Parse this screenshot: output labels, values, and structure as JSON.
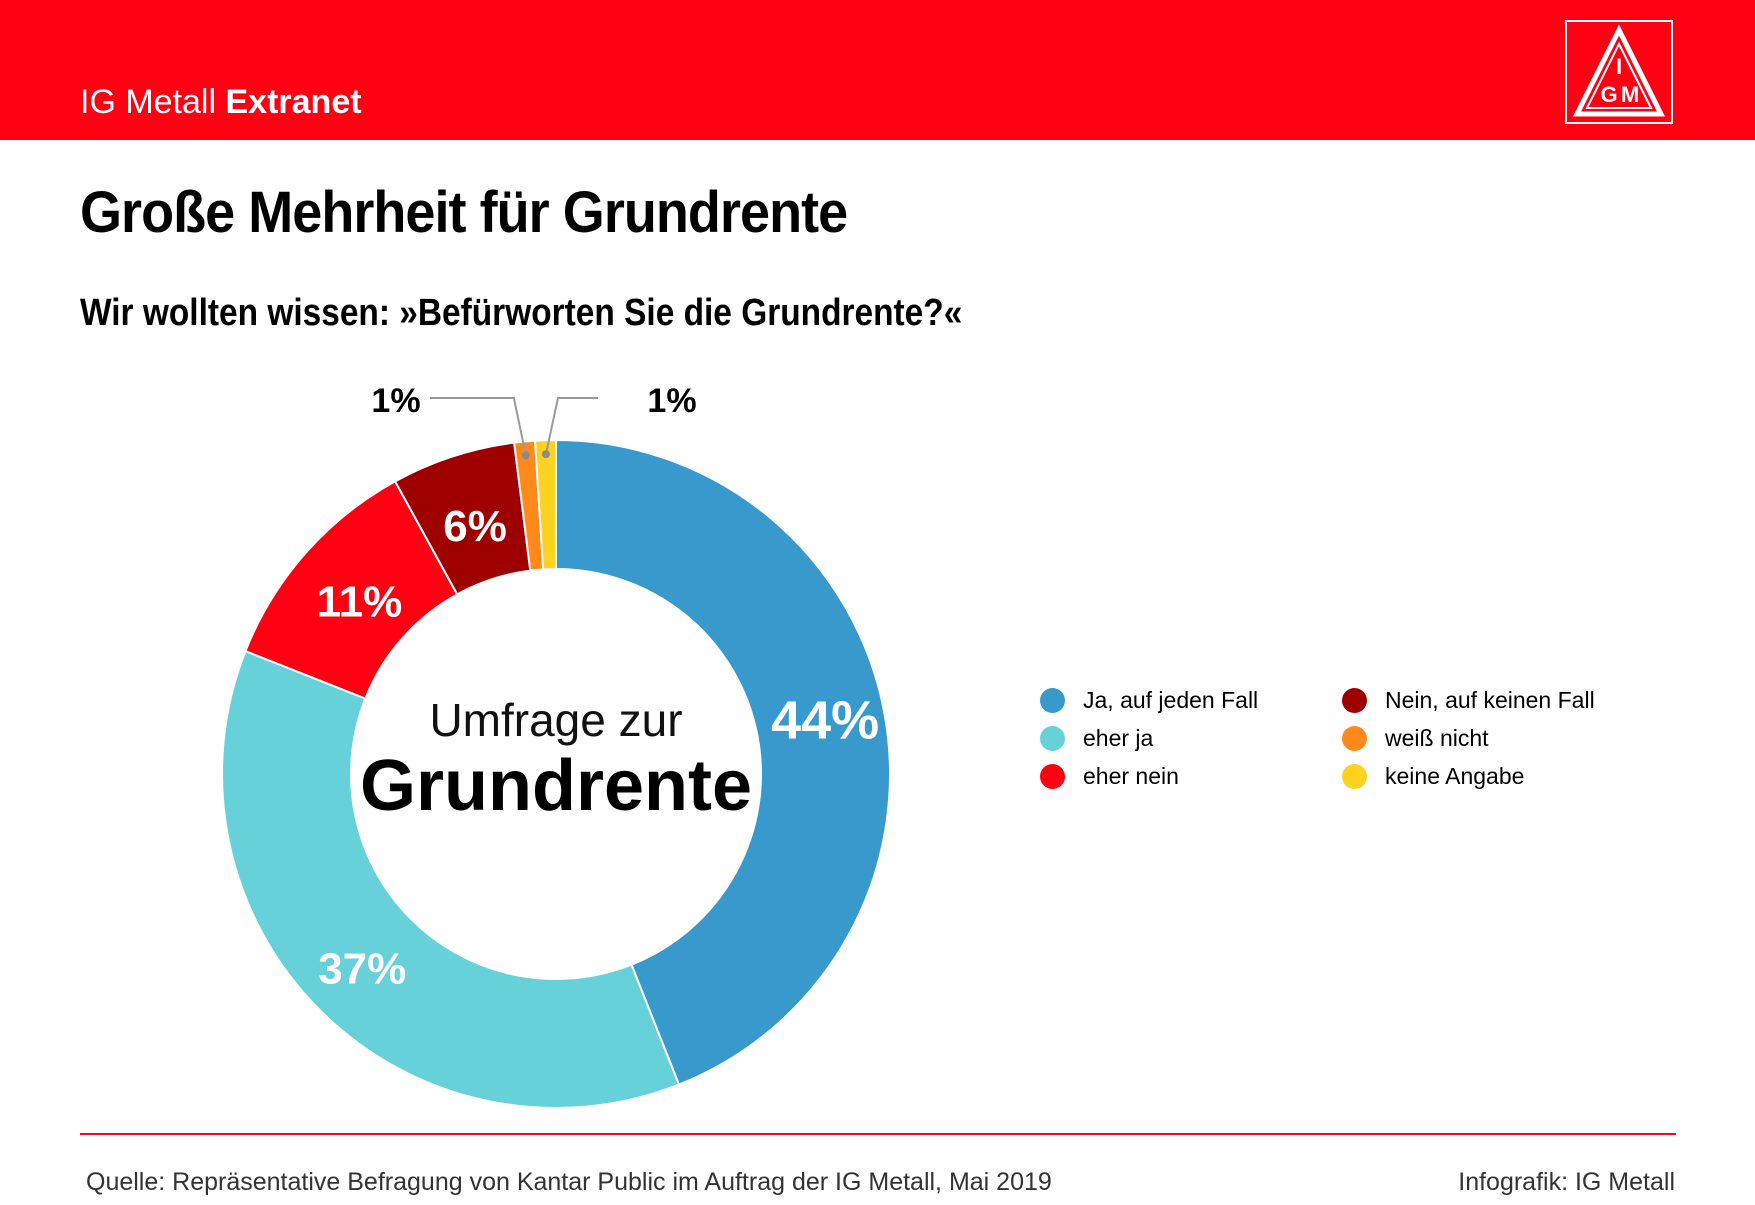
{
  "header": {
    "brand_regular": "IG Metall",
    "brand_bold": "Extranet",
    "logo_text": "IGM",
    "bar_color": "#ff0013"
  },
  "title": "Große Mehrheit für Grundrente",
  "subtitle": "Wir wollten wissen:  »Befürworten Sie die Grundrente?«",
  "chart_data": {
    "type": "pie",
    "variant": "donut",
    "center_text": {
      "line1": "Umfrage zur",
      "line2": "Grundrente"
    },
    "slices": [
      {
        "label": "Ja, auf jeden Fall",
        "value": 44,
        "display": "44%",
        "color": "#3799cc"
      },
      {
        "label": "eher ja",
        "value": 37,
        "display": "37%",
        "color": "#67d1da"
      },
      {
        "label": "eher nein",
        "value": 11,
        "display": "11%",
        "color": "#ff0013"
      },
      {
        "label": "Nein, auf keinen Fall",
        "value": 6,
        "display": "6%",
        "color": "#9e0000"
      },
      {
        "label": "weiß nicht",
        "value": 1,
        "display": "1%",
        "color": "#ff8a19"
      },
      {
        "label": "keine Angabe",
        "value": 1,
        "display": "1%",
        "color": "#ffd21f"
      }
    ],
    "legend_position": "right"
  },
  "footer": {
    "source": "Quelle: Repräsentative Befragung von Kantar Public im Auftrag der IG Metall, Mai 2019",
    "credit": "Infografik: IG Metall"
  }
}
